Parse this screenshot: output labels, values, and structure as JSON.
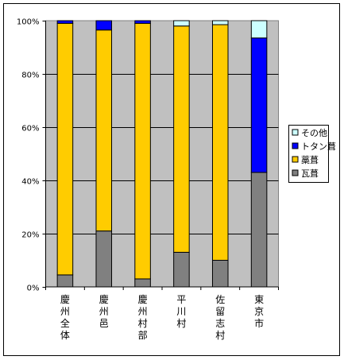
{
  "chart_data": {
    "type": "bar",
    "stacked": true,
    "percent_stacked": true,
    "categories": [
      [
        "慶",
        "州",
        "全",
        "体"
      ],
      [
        "慶",
        "州",
        "邑"
      ],
      [
        "慶",
        "州",
        "村",
        "部"
      ],
      [
        "平",
        "川",
        "村"
      ],
      [
        "佐",
        "留",
        "志",
        "村"
      ],
      [
        "東",
        "京",
        "市"
      ]
    ],
    "series": [
      {
        "name": "瓦葺",
        "values": [
          4.5,
          21,
          3,
          13,
          10,
          43
        ],
        "color": "#808080"
      },
      {
        "name": "藁葺",
        "values": [
          94.5,
          75.5,
          96,
          85,
          88.5,
          0
        ],
        "color": "#FFCC00"
      },
      {
        "name": "トタン葺",
        "values": [
          1,
          3.5,
          1,
          0,
          0,
          50.5
        ],
        "color": "#0000FF"
      },
      {
        "name": "その他",
        "values": [
          0,
          0,
          0,
          2,
          1.5,
          6.5
        ],
        "color": "#CCFFFF"
      }
    ],
    "y_ticks": [
      "0%",
      "20%",
      "40%",
      "60%",
      "80%",
      "100%"
    ],
    "ylim": [
      0,
      100
    ],
    "grid": true,
    "plot_background": "#C0C0C0",
    "legend_position": "right",
    "legend_order": [
      "その他",
      "トタン葺",
      "藁葺",
      "瓦葺"
    ]
  }
}
